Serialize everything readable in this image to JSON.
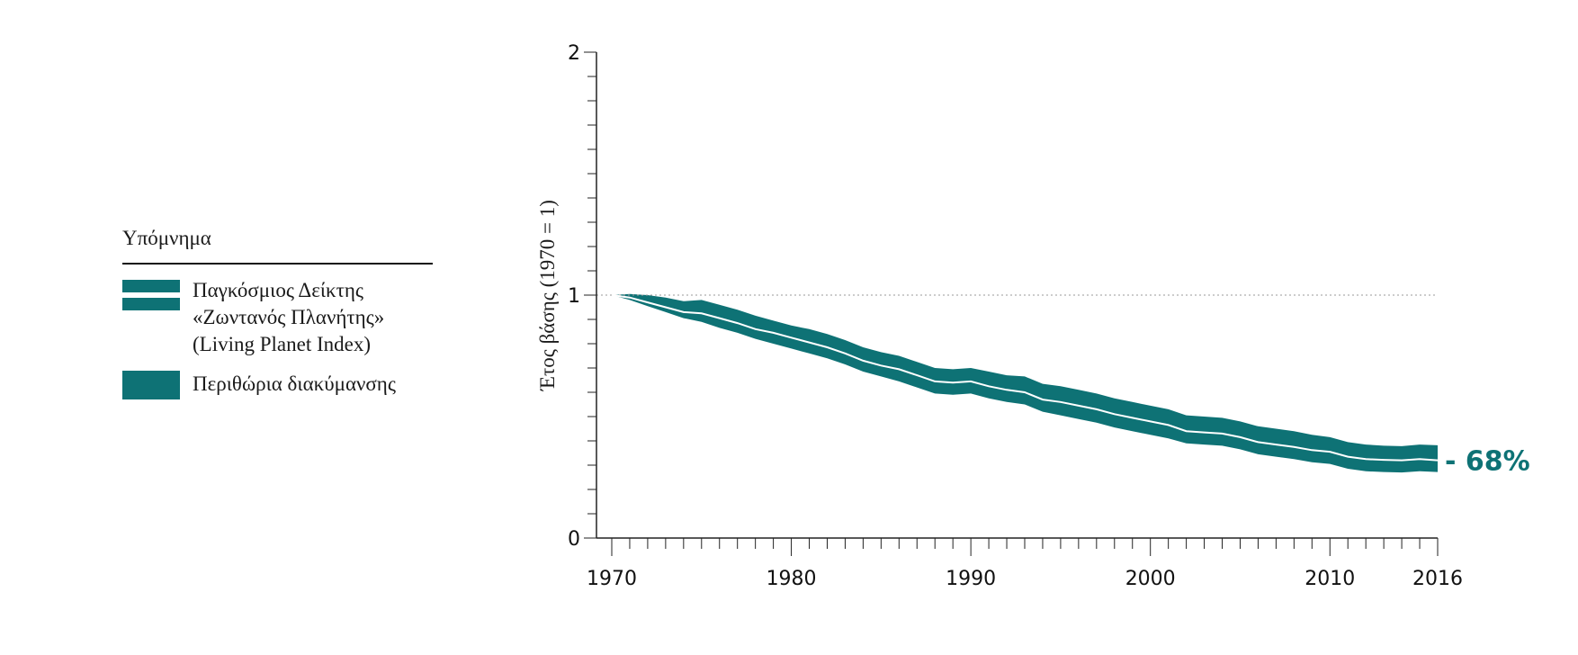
{
  "legend": {
    "title": "Υπόμνημα",
    "items": [
      {
        "label": "Παγκόσμιος Δείκτης\n«Ζωντανός Πλανήτης»\n(Living Planet Index)",
        "swatch": "index-line"
      },
      {
        "label": "Περιθώρια διακύμανσης",
        "swatch": "confidence-band"
      }
    ]
  },
  "colors": {
    "band": "#0e7275",
    "index_line": "#ffffff",
    "baseline": "#9a9a9a",
    "axis": "#222222",
    "end_label": "#0e7275"
  },
  "chart_data": {
    "type": "area",
    "ylabel": "Έτος βάσης (1970 = 1)",
    "xlim": [
      1970,
      2016
    ],
    "ylim": [
      0,
      2
    ],
    "x_ticks": [
      1970,
      1980,
      1990,
      2000,
      2010,
      2016
    ],
    "y_ticks": [
      0,
      1,
      2
    ],
    "baseline_value": 1,
    "end_annotation": "- 68%",
    "years": [
      1970,
      1971,
      1972,
      1973,
      1974,
      1975,
      1976,
      1977,
      1978,
      1979,
      1980,
      1981,
      1982,
      1983,
      1984,
      1985,
      1986,
      1987,
      1988,
      1989,
      1990,
      1991,
      1992,
      1993,
      1994,
      1995,
      1996,
      1997,
      1998,
      1999,
      2000,
      2001,
      2002,
      2003,
      2004,
      2005,
      2006,
      2007,
      2008,
      2009,
      2010,
      2011,
      2012,
      2013,
      2014,
      2015,
      2016
    ],
    "series": [
      {
        "name": "Παγκόσμιος Δείκτης «Ζωντανός Πλανήτης» (Living Planet Index)",
        "values": [
          1.0,
          0.99,
          0.97,
          0.95,
          0.93,
          0.925,
          0.905,
          0.885,
          0.86,
          0.845,
          0.825,
          0.805,
          0.785,
          0.76,
          0.73,
          0.71,
          0.695,
          0.67,
          0.645,
          0.64,
          0.645,
          0.625,
          0.61,
          0.6,
          0.57,
          0.56,
          0.545,
          0.53,
          0.51,
          0.495,
          0.48,
          0.465,
          0.44,
          0.435,
          0.43,
          0.415,
          0.395,
          0.385,
          0.375,
          0.362,
          0.355,
          0.335,
          0.325,
          0.322,
          0.32,
          0.325,
          0.32
        ]
      },
      {
        "name": "Περιθώρια διακύμανσης (upper)",
        "values": [
          1.0,
          1.005,
          1.0,
          0.99,
          0.975,
          0.98,
          0.96,
          0.94,
          0.915,
          0.895,
          0.875,
          0.86,
          0.84,
          0.815,
          0.785,
          0.765,
          0.75,
          0.725,
          0.7,
          0.695,
          0.7,
          0.685,
          0.67,
          0.665,
          0.635,
          0.625,
          0.61,
          0.595,
          0.575,
          0.56,
          0.545,
          0.53,
          0.505,
          0.5,
          0.495,
          0.48,
          0.46,
          0.45,
          0.44,
          0.425,
          0.415,
          0.395,
          0.385,
          0.38,
          0.378,
          0.385,
          0.382
        ]
      },
      {
        "name": "Περιθώρια διακύμανσης (lower)",
        "values": [
          1.0,
          0.98,
          0.955,
          0.93,
          0.905,
          0.89,
          0.865,
          0.845,
          0.82,
          0.8,
          0.78,
          0.76,
          0.74,
          0.715,
          0.685,
          0.665,
          0.645,
          0.62,
          0.595,
          0.59,
          0.595,
          0.575,
          0.56,
          0.55,
          0.52,
          0.505,
          0.49,
          0.475,
          0.455,
          0.44,
          0.425,
          0.41,
          0.39,
          0.385,
          0.38,
          0.365,
          0.345,
          0.335,
          0.325,
          0.312,
          0.305,
          0.285,
          0.275,
          0.272,
          0.27,
          0.275,
          0.272
        ]
      }
    ]
  }
}
